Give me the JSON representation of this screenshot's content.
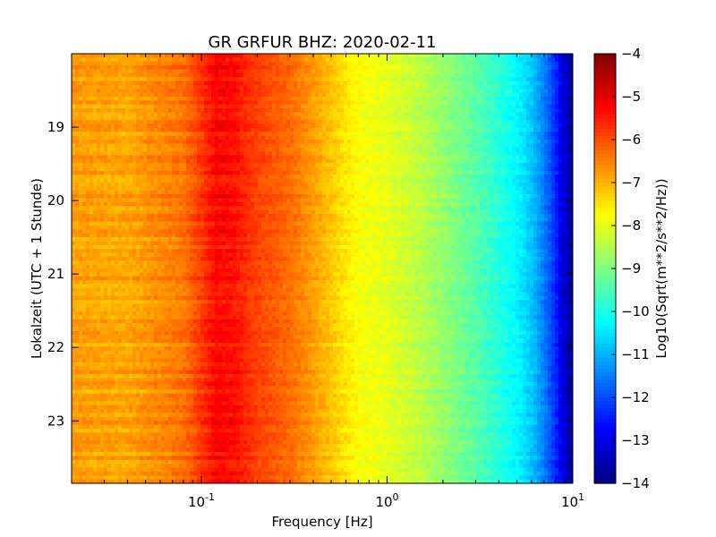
{
  "chart_data": {
    "type": "heatmap",
    "title": "GR GRFUR BHZ: 2020-02-11",
    "xlabel": "Frequency [Hz]",
    "ylabel": "Lokalzeit (UTC + 1 Stunde)",
    "x_scale": "log",
    "xlim": [
      0.02,
      10
    ],
    "x_ticks": [
      {
        "value": 0.1,
        "base": "10",
        "exp": "-1"
      },
      {
        "value": 1,
        "base": "10",
        "exp": "0"
      },
      {
        "value": 10,
        "base": "10",
        "exp": "1"
      }
    ],
    "ylim": [
      18.0,
      23.85
    ],
    "y_inverted": true,
    "y_ticks": [
      {
        "value": 19,
        "label": "19"
      },
      {
        "value": 20,
        "label": "20"
      },
      {
        "value": 21,
        "label": "21"
      },
      {
        "value": 22,
        "label": "22"
      },
      {
        "value": 23,
        "label": "23"
      }
    ],
    "colorbar": {
      "label": "Log10(Sqrt(m**2/s**2/Hz))",
      "range": [
        -14,
        -4
      ],
      "colormap": "jet",
      "ticks": [
        {
          "value": -4,
          "label": "−4"
        },
        {
          "value": -5,
          "label": "−5"
        },
        {
          "value": -6,
          "label": "−6"
        },
        {
          "value": -7,
          "label": "−7"
        },
        {
          "value": -8,
          "label": "−8"
        },
        {
          "value": -9,
          "label": "−9"
        },
        {
          "value": -10,
          "label": "−10"
        },
        {
          "value": -11,
          "label": "−11"
        },
        {
          "value": -12,
          "label": "−12"
        },
        {
          "value": -13,
          "label": "−13"
        },
        {
          "value": -14,
          "label": "−14"
        }
      ]
    },
    "spectrum_profile": {
      "frequency_hz": [
        0.02,
        0.04,
        0.06,
        0.08,
        0.1,
        0.12,
        0.15,
        0.2,
        0.3,
        0.5,
        0.7,
        1.0,
        1.5,
        2.0,
        3.0,
        4.0,
        5.0,
        6.0,
        7.0,
        8.0,
        9.0,
        10.0
      ],
      "log10_amplitude": [
        -6.8,
        -6.9,
        -6.6,
        -6.4,
        -5.8,
        -5.3,
        -5.4,
        -5.9,
        -6.3,
        -7.2,
        -7.8,
        -8.0,
        -8.4,
        -8.8,
        -9.4,
        -9.9,
        -10.3,
        -10.8,
        -11.5,
        -12.3,
        -13.2,
        -13.8
      ]
    }
  }
}
